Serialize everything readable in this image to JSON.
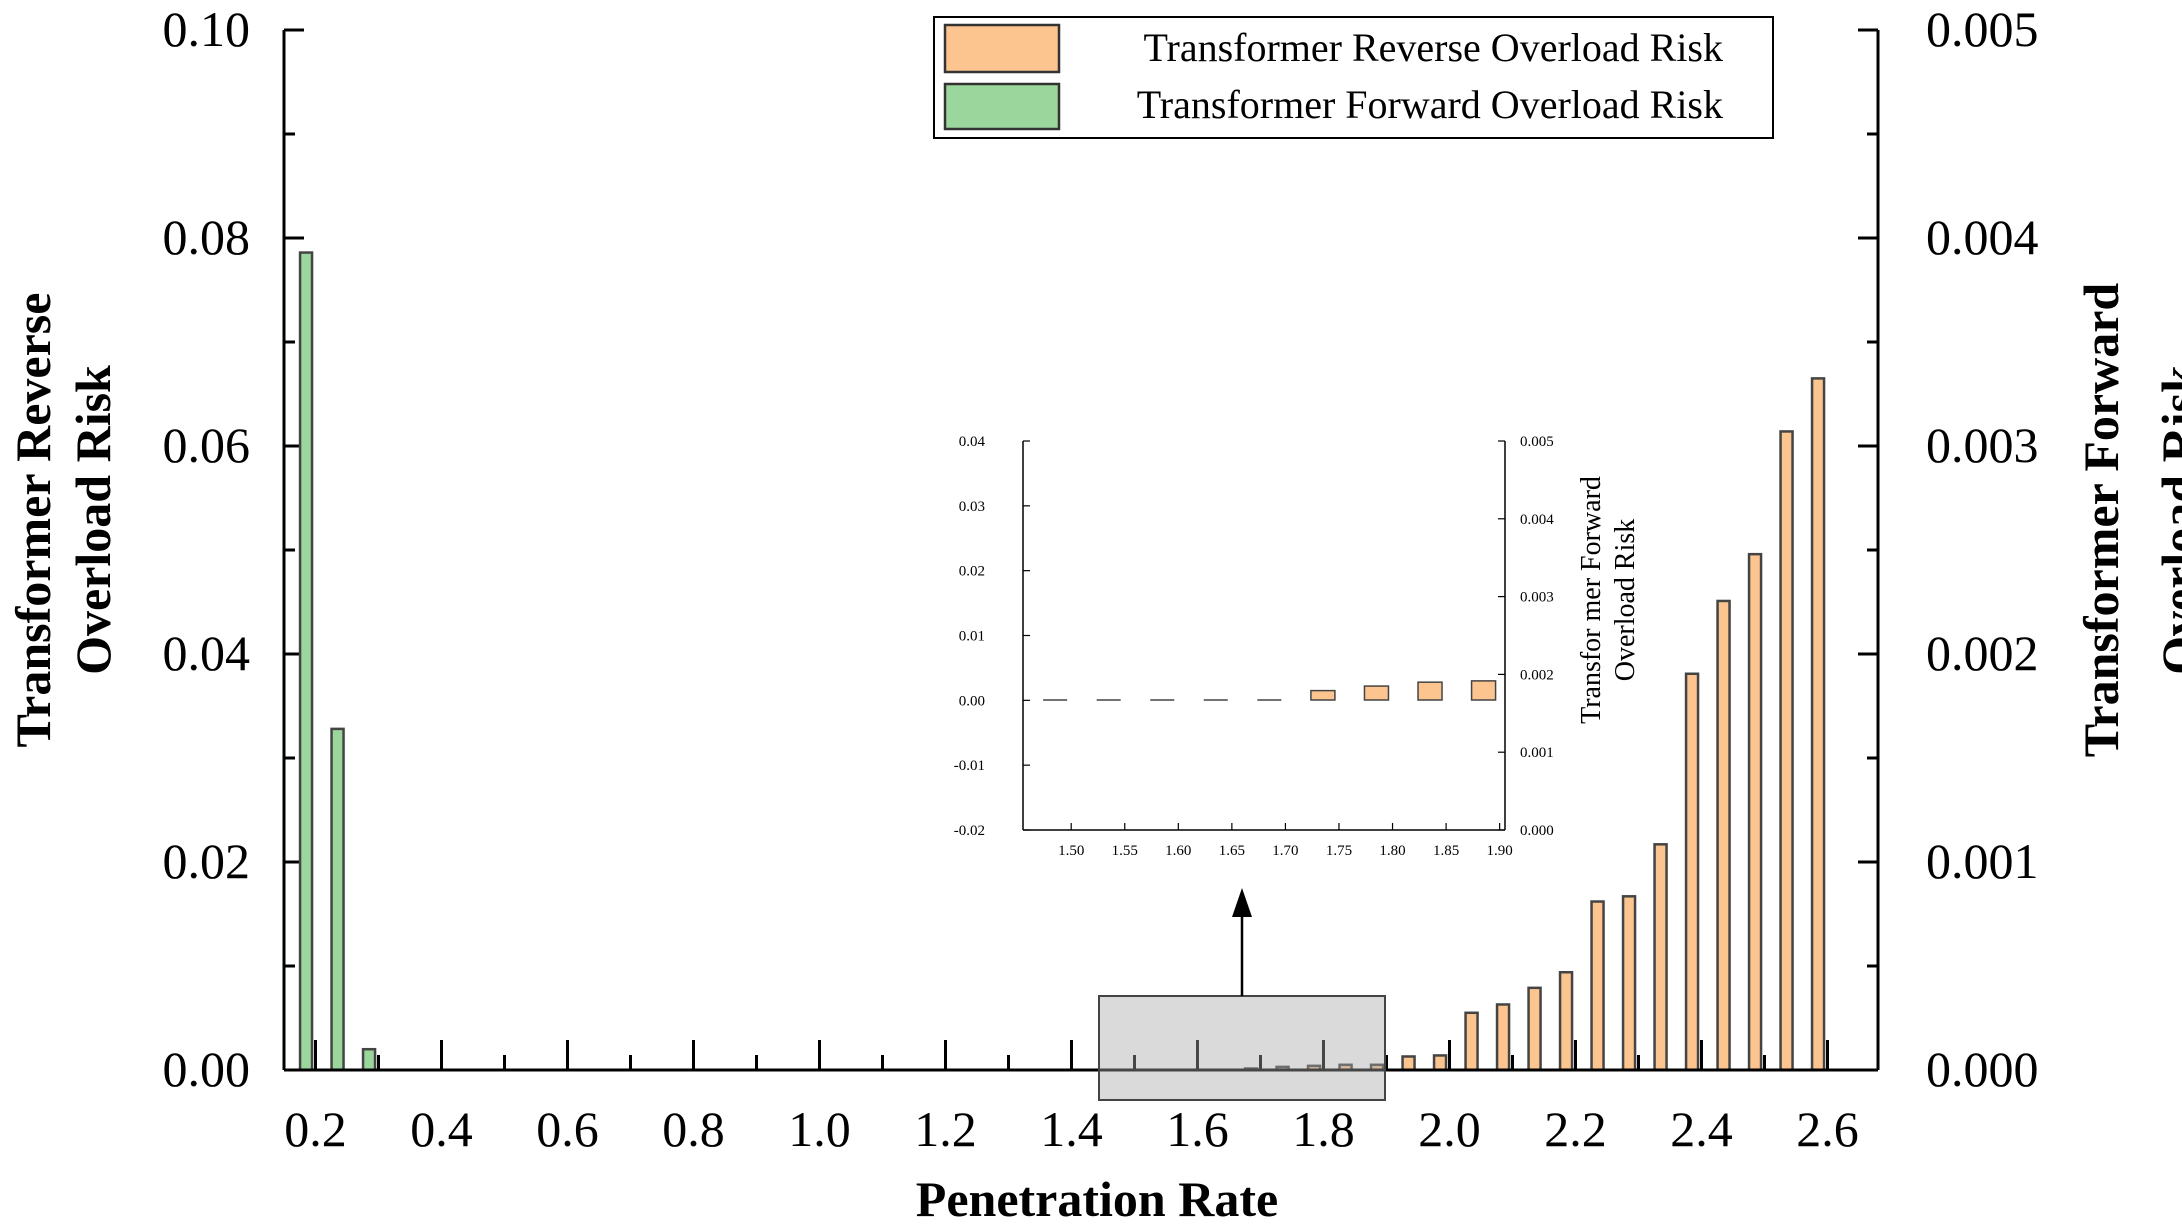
{
  "chart_data": {
    "type": "bar",
    "xlabel": "Penetration Rate",
    "ylabel_left": "Transformer Reverse Overload Risk",
    "ylabel_right": "Transformer Forward Overload Risk",
    "ylabel_left_lines": [
      "Transformer Reverse",
      "Overload Risk"
    ],
    "ylabel_right_lines": [
      "Transformer Forward",
      "Overload Risk"
    ],
    "xlim": [
      0.15,
      2.6
    ],
    "ylim_left": [
      0,
      0.1
    ],
    "ylim_right": [
      0,
      0.005
    ],
    "x_ticks": [
      "0.2",
      "0.4",
      "0.6",
      "0.8",
      "1.0",
      "1.2",
      "1.4",
      "1.6",
      "1.8",
      "2.0",
      "2.2",
      "2.4",
      "2.6"
    ],
    "y_ticks_left": [
      "0.00",
      "0.02",
      "0.04",
      "0.06",
      "0.08",
      "0.10"
    ],
    "y_ticks_right": [
      "0.000",
      "0.001",
      "0.002",
      "0.003",
      "0.004",
      "0.005"
    ],
    "legend": [
      {
        "label": "Transformer Reverse Overload Risk",
        "color": "#FCC48F"
      },
      {
        "label": "Transformer Forward Overload Risk",
        "color": "#9BD69C"
      }
    ],
    "series": [
      {
        "name": "Transformer Reverse Overload Risk",
        "axis": "left",
        "color": "#FCC48F",
        "x": [
          1.685,
          1.735,
          1.785,
          1.835,
          1.885,
          1.935,
          1.985,
          2.035,
          2.085,
          2.135,
          2.185,
          2.235,
          2.285,
          2.335,
          2.385,
          2.435,
          2.485,
          2.535
        ],
        "values": [
          0.0001,
          0.0003,
          0.0004,
          0.0005,
          0.0005,
          0.0013,
          0.0014,
          0.0055,
          0.0063,
          0.0079,
          0.0094,
          0.0162,
          0.0167,
          0.0217,
          0.0381,
          0.0451,
          0.0496,
          0.0614
        ]
      },
      {
        "name": "Transformer Forward Overload Risk",
        "axis": "right",
        "color": "#9BD69C",
        "x": [
          0.185,
          0.235,
          0.285
        ],
        "values": [
          0.00393,
          0.00164,
          0.0001
        ]
      }
    ],
    "last_reverse_bar": {
      "x": 2.585,
      "value": 0.0665
    },
    "inset": {
      "x_ticks": [
        "1.50",
        "1.55",
        "1.60",
        "1.65",
        "1.70",
        "1.75",
        "1.80",
        "1.85",
        "1.90"
      ],
      "y_ticks_left": [
        "-0.02",
        "-0.01",
        "0.00",
        "0.01",
        "0.02",
        "0.03",
        "0.04"
      ],
      "y_ticks_right": [
        "0.000",
        "0.001",
        "0.002",
        "0.003",
        "0.004",
        "0.005"
      ],
      "ylabel_right_lines": [
        "Transfor mer Forward",
        "Overload Risk"
      ],
      "xlim": [
        1.455,
        1.905
      ],
      "ylim": [
        -0.02,
        0.04
      ],
      "bars_x": [
        1.735,
        1.785,
        1.835,
        1.885
      ],
      "bars_values": [
        0.0015,
        0.0022,
        0.0028,
        0.003
      ],
      "zero_x": [
        1.485,
        1.535,
        1.585,
        1.635,
        1.685
      ]
    }
  }
}
